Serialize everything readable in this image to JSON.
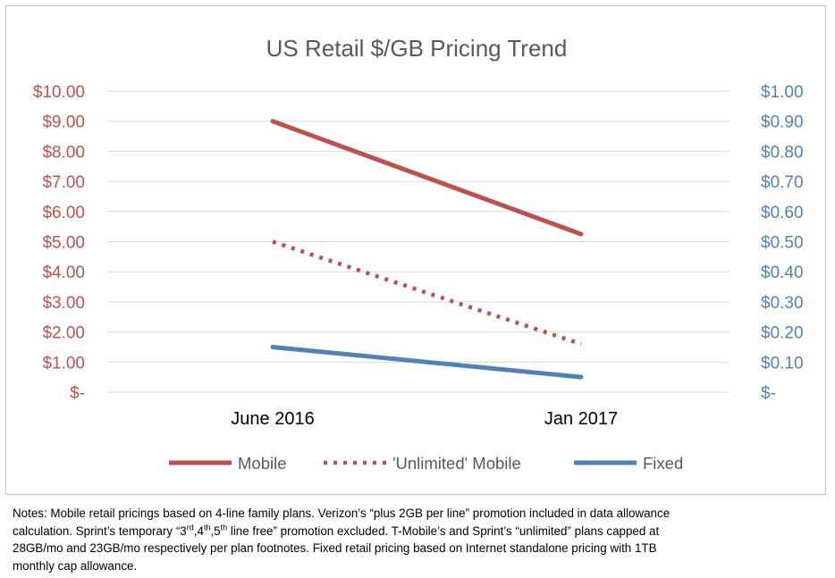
{
  "chart_data": {
    "type": "line",
    "title": "US Retail $/GB Pricing Trend",
    "categories": [
      "June 2016",
      "Jan 2017"
    ],
    "y_left": {
      "ylim": [
        0,
        10
      ],
      "ticks": [
        "$-",
        "$1.00",
        "$2.00",
        "$3.00",
        "$4.00",
        "$5.00",
        "$6.00",
        "$7.00",
        "$8.00",
        "$9.00",
        "$10.00"
      ],
      "color": "#c0504d"
    },
    "y_right": {
      "ylim": [
        0,
        1
      ],
      "ticks": [
        "$-",
        "$0.10",
        "$0.20",
        "$0.30",
        "$0.40",
        "$0.50",
        "$0.60",
        "$0.70",
        "$0.80",
        "$0.90",
        "$1.00"
      ],
      "color": "#4f81bd"
    },
    "grid": true,
    "legend_position": "bottom",
    "series": [
      {
        "name": "Mobile",
        "axis": "left",
        "values": [
          9.0,
          5.25
        ],
        "color": "#c0504d",
        "style": "solid"
      },
      {
        "name": "'Unlimited' Mobile",
        "axis": "left",
        "values": [
          5.0,
          1.6
        ],
        "color": "#c0504d",
        "style": "dotted"
      },
      {
        "name": "Fixed",
        "axis": "right",
        "values": [
          0.15,
          0.05
        ],
        "color": "#4f81bd",
        "style": "solid"
      }
    ]
  },
  "notes": {
    "line1": "Notes:  Mobile retail pricings based on 4-line family plans.  Verizon’s “plus 2GB per line” promotion included in data allowance",
    "line2_a": "calculation.  Sprint’s temporary “3",
    "sup_rd": "rd",
    "comma1": ",4",
    "sup_th1": "th",
    "comma2": ",5",
    "sup_th2": "th",
    "line2_b": " line free” promotion excluded.  T-Mobile’s and Sprint’s “unlimited” plans capped at",
    "line3": "28GB/mo and 23GB/mo respectively per plan footnotes.  Fixed retail pricing based on Internet standalone pricing with 1TB",
    "line4": "monthly cap allowance."
  }
}
